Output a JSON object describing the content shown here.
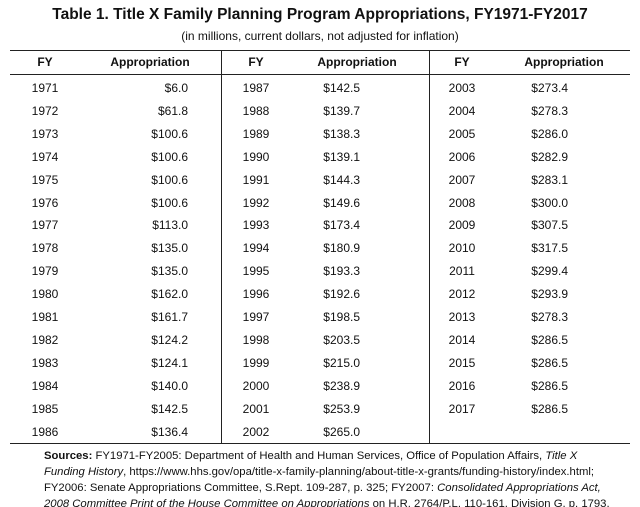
{
  "title": "Table 1. Title X Family Planning Program Appropriations, FY1971-FY2017",
  "subtitle": "(in millions, current dollars, not adjusted for inflation)",
  "table": {
    "columns": [
      "FY",
      "Appropriation"
    ],
    "groups": [
      [
        [
          "1971",
          "$6.0"
        ],
        [
          "1972",
          "$61.8"
        ],
        [
          "1973",
          "$100.6"
        ],
        [
          "1974",
          "$100.6"
        ],
        [
          "1975",
          "$100.6"
        ],
        [
          "1976",
          "$100.6"
        ],
        [
          "1977",
          "$113.0"
        ],
        [
          "1978",
          "$135.0"
        ],
        [
          "1979",
          "$135.0"
        ],
        [
          "1980",
          "$162.0"
        ],
        [
          "1981",
          "$161.7"
        ],
        [
          "1982",
          "$124.2"
        ],
        [
          "1983",
          "$124.1"
        ],
        [
          "1984",
          "$140.0"
        ],
        [
          "1985",
          "$142.5"
        ],
        [
          "1986",
          "$136.4"
        ]
      ],
      [
        [
          "1987",
          "$142.5"
        ],
        [
          "1988",
          "$139.7"
        ],
        [
          "1989",
          "$138.3"
        ],
        [
          "1990",
          "$139.1"
        ],
        [
          "1991",
          "$144.3"
        ],
        [
          "1992",
          "$149.6"
        ],
        [
          "1993",
          "$173.4"
        ],
        [
          "1994",
          "$180.9"
        ],
        [
          "1995",
          "$193.3"
        ],
        [
          "1996",
          "$192.6"
        ],
        [
          "1997",
          "$198.5"
        ],
        [
          "1998",
          "$203.5"
        ],
        [
          "1999",
          "$215.0"
        ],
        [
          "2000",
          "$238.9"
        ],
        [
          "2001",
          "$253.9"
        ],
        [
          "2002",
          "$265.0"
        ]
      ],
      [
        [
          "2003",
          "$273.4"
        ],
        [
          "2004",
          "$278.3"
        ],
        [
          "2005",
          "$286.0"
        ],
        [
          "2006",
          "$282.9"
        ],
        [
          "2007",
          "$283.1"
        ],
        [
          "2008",
          "$300.0"
        ],
        [
          "2009",
          "$307.5"
        ],
        [
          "2010",
          "$317.5"
        ],
        [
          "2011",
          "$299.4"
        ],
        [
          "2012",
          "$293.9"
        ],
        [
          "2013",
          "$278.3"
        ],
        [
          "2014",
          "$286.5"
        ],
        [
          "2015",
          "$286.5"
        ],
        [
          "2016",
          "$286.5"
        ],
        [
          "2017",
          "$286.5"
        ]
      ]
    ]
  },
  "sources": {
    "label": "Sources:",
    "parts": [
      {
        "text": "FY1971-FY2005: Department of Health and Human Services, Office of Population Affairs, ",
        "italic": false
      },
      {
        "text": "Title X Funding History",
        "italic": true
      },
      {
        "text": ", https://www.hhs.gov/opa/title-x-family-planning/about-title-x-grants/funding-history/index.html; FY2006: Senate Appropriations Committee, S.Rept. 109-287, p. 325; FY2007: ",
        "italic": false
      },
      {
        "text": "Consolidated Appropriations Act, 2008 Committee Print of the House Committee on Appropriations",
        "italic": true
      },
      {
        "text": " on H.R. 2764/P.L. 110-161, Division G, p. 1793,",
        "italic": false
      }
    ]
  }
}
